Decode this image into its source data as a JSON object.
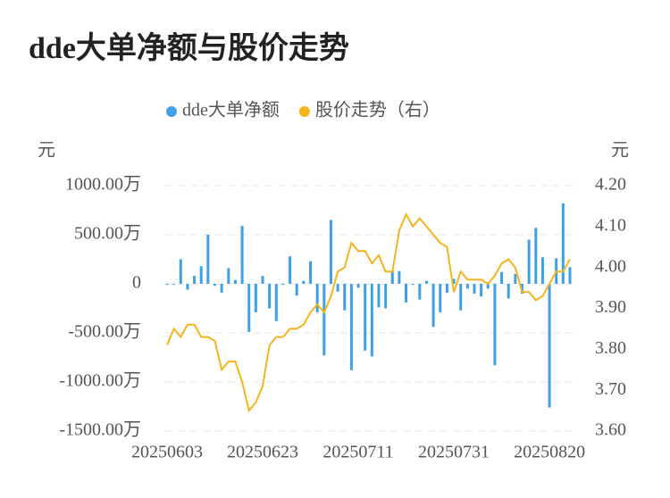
{
  "chart_data": {
    "type": "bar-line",
    "title": "dde大单净额与股价走势",
    "y_label": "元",
    "y2_label": "元",
    "categories": [
      "20250603",
      null,
      null,
      null,
      null,
      null,
      null,
      null,
      null,
      null,
      null,
      null,
      null,
      null,
      "20250623",
      null,
      null,
      null,
      null,
      null,
      null,
      null,
      null,
      null,
      null,
      null,
      null,
      null,
      "20250711",
      null,
      null,
      null,
      null,
      null,
      null,
      null,
      null,
      null,
      null,
      null,
      null,
      null,
      "20250731",
      null,
      null,
      null,
      null,
      null,
      null,
      null,
      null,
      null,
      null,
      null,
      null,
      null,
      "20250820",
      null,
      null,
      null
    ],
    "series": [
      {
        "name": "dde大单净额",
        "type": "bar",
        "color": "#3ea0e6",
        "values": [
          -10,
          -10,
          250,
          -60,
          80,
          180,
          500,
          -20,
          -90,
          160,
          40,
          590,
          -490,
          -290,
          80,
          -250,
          -380,
          -10,
          280,
          -120,
          30,
          230,
          -290,
          -730,
          650,
          -80,
          -270,
          -880,
          -40,
          -680,
          -740,
          -240,
          -250,
          130,
          130,
          -190,
          -10,
          -160,
          30,
          -440,
          -290,
          -90,
          50,
          -270,
          -50,
          -100,
          -130,
          -50,
          -830,
          120,
          -150,
          100,
          -100,
          450,
          570,
          270,
          -1260,
          260,
          820,
          170
        ]
      },
      {
        "name": "股价走势（右）",
        "type": "line",
        "axis": "y2",
        "color": "#f5b41c",
        "values": [
          3.81,
          3.85,
          3.83,
          3.86,
          3.86,
          3.83,
          3.83,
          3.82,
          3.75,
          3.77,
          3.77,
          3.72,
          3.65,
          3.67,
          3.71,
          3.81,
          3.83,
          3.83,
          3.85,
          3.85,
          3.86,
          3.89,
          3.91,
          3.89,
          3.93,
          3.99,
          4.0,
          4.06,
          4.04,
          4.04,
          4.01,
          4.03,
          3.99,
          3.99,
          4.09,
          4.13,
          4.1,
          4.12,
          4.1,
          4.08,
          4.06,
          4.05,
          3.94,
          3.99,
          3.97,
          3.97,
          3.97,
          3.96,
          3.98,
          4.01,
          4.02,
          4.0,
          3.94,
          3.94,
          3.92,
          3.93,
          3.96,
          3.99,
          3.99,
          4.02
        ]
      }
    ],
    "ylim": [
      -1500,
      1000
    ],
    "yticks": [
      {
        "value": 1000,
        "label": "1000.00万"
      },
      {
        "value": 500,
        "label": "500.00万"
      },
      0,
      {
        "value": -500,
        "label": "-500.00万"
      },
      {
        "value": -1000,
        "label": "-1000.00万"
      },
      {
        "value": -1500,
        "label": "-1500.00万"
      }
    ],
    "y2lim": [
      3.6,
      4.2
    ],
    "y2ticks": [
      {
        "value": 4.2,
        "label": "4.20"
      },
      {
        "value": 4.1,
        "label": "4.10"
      },
      {
        "value": 4.0,
        "label": "4.00"
      },
      {
        "value": 3.9,
        "label": "3.90"
      },
      {
        "value": 3.8,
        "label": "3.80"
      },
      {
        "value": 3.7,
        "label": "3.70"
      },
      {
        "value": 3.6,
        "label": "3.60"
      }
    ],
    "grid": true
  }
}
